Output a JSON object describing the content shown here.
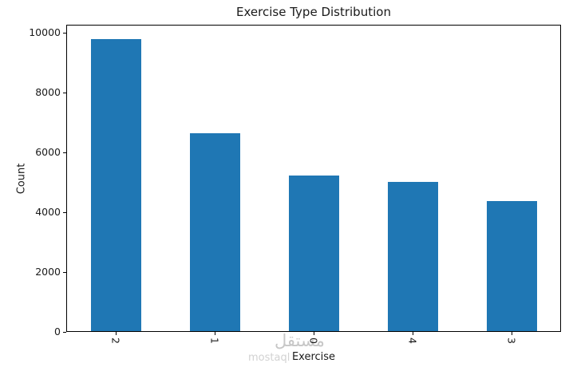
{
  "chart_data": {
    "type": "bar",
    "title": "Exercise Type Distribution",
    "xlabel": "Exercise",
    "ylabel": "Count",
    "categories": [
      "2",
      "1",
      "0",
      "4",
      "3"
    ],
    "values": [
      9765,
      6610,
      5210,
      4975,
      4335
    ],
    "ylim": [
      0,
      10000
    ],
    "yticks": [
      0,
      2000,
      4000,
      6000,
      8000,
      10000
    ],
    "xtick_rotation_deg": 90,
    "grid": false,
    "legend": "none",
    "bar_color": "#1f77b4"
  },
  "watermark": {
    "arabic_text": "مستقل",
    "latin_text": "mostaql",
    "arabic_color": "#c7c7c7",
    "latin_color": "#d2d2d2"
  }
}
